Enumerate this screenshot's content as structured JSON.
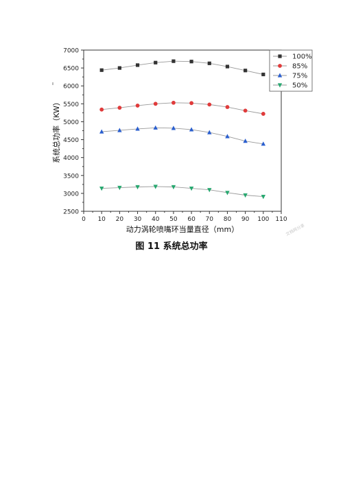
{
  "chart_data": {
    "type": "line",
    "xlabel": "动力涡轮喷嘴环当量直径（mm）",
    "ylabel": "系统总功率（KW）",
    "xlim": [
      0,
      110
    ],
    "ylim": [
      2500,
      7000
    ],
    "xticks": [
      0,
      10,
      20,
      30,
      40,
      50,
      60,
      70,
      80,
      90,
      100,
      110
    ],
    "yticks": [
      2500,
      3000,
      3500,
      4000,
      4500,
      5000,
      5500,
      6000,
      6500,
      7000
    ],
    "x": [
      10,
      20,
      30,
      40,
      50,
      60,
      70,
      80,
      90,
      100
    ],
    "legend_position": "top-right",
    "grid": false,
    "series": [
      {
        "name": "100%",
        "color": "#333333",
        "marker": "square",
        "values": [
          6440,
          6500,
          6580,
          6650,
          6690,
          6680,
          6630,
          6540,
          6430,
          6320
        ]
      },
      {
        "name": "85%",
        "color": "#e03b3b",
        "marker": "circle",
        "values": [
          5340,
          5390,
          5450,
          5500,
          5530,
          5520,
          5480,
          5410,
          5310,
          5220
        ]
      },
      {
        "name": "75%",
        "color": "#2a5fcf",
        "marker": "triangle-up",
        "values": [
          4720,
          4760,
          4800,
          4830,
          4820,
          4780,
          4700,
          4590,
          4460,
          4380
        ]
      },
      {
        "name": "50%",
        "color": "#28a870",
        "marker": "triangle-down",
        "values": [
          3140,
          3160,
          3180,
          3190,
          3180,
          3140,
          3100,
          3020,
          2950,
          2910
        ]
      }
    ]
  },
  "caption": "图 11  系统总功率",
  "watermark": "文档网分享"
}
